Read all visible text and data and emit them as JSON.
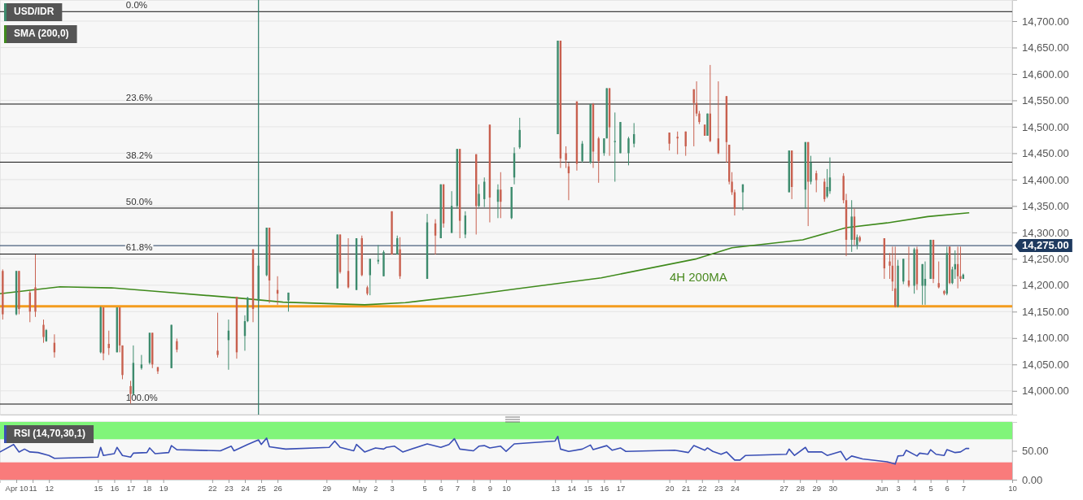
{
  "chart_data": [
    {
      "type": "candlestick",
      "xlim": [
        "--04-09T00:00",
        "--06-10T00:00"
      ],
      "ylim": [
        13955,
        14740
      ],
      "tick_labels": "y",
      "grid": "y",
      "legend": "top left",
      "yticks": [
        {
          "value": 14000,
          "label": "14,000.00"
        },
        {
          "value": 14050,
          "label": "14,050.00"
        },
        {
          "value": 14100,
          "label": "14,100.00"
        },
        {
          "value": 14150,
          "label": "14,150.00"
        },
        {
          "value": 14200,
          "label": "14,200.00"
        },
        {
          "value": 14250,
          "label": "14,250.00"
        },
        {
          "value": 14300,
          "label": "14,300.00"
        },
        {
          "value": 14350,
          "label": "14,350.00"
        },
        {
          "value": 14400,
          "label": "14,400.00"
        },
        {
          "value": 14450,
          "label": "14,450.00"
        },
        {
          "value": 14500,
          "label": "14,500.00"
        },
        {
          "value": 14550,
          "label": "14,550.00"
        },
        {
          "value": 14600,
          "label": "14,600.00"
        },
        {
          "value": 14650,
          "label": "14,650.00"
        },
        {
          "value": 14700,
          "label": "14,700.00"
        }
      ],
      "ref_lines": [
        {
          "axis": "y",
          "value": 14718
        },
        {
          "axis": "y",
          "value": 14543
        },
        {
          "axis": "y",
          "value": 14433
        },
        {
          "axis": "y",
          "value": 14346
        },
        {
          "axis": "y",
          "value": 14259
        },
        {
          "axis": "y",
          "value": 13975
        },
        {
          "axis": "y",
          "value": 14275,
          "label": "14,275.00",
          "color": "#1e3a5f"
        },
        {
          "axis": "y",
          "value": 14160,
          "color": "#f39c1e"
        },
        {
          "axis": "x",
          "value": "--04-24T20:00",
          "color": "#2e7d6a"
        }
      ],
      "annotations": [
        {
          "text": "0.0%",
          "x": "--04-16T16:00",
          "y": 14718
        },
        {
          "text": "23.6%",
          "x": "--04-16T16:00",
          "y": 14543
        },
        {
          "text": "38.2%",
          "x": "--04-16T16:00",
          "y": 14433
        },
        {
          "text": "50.0%",
          "x": "--04-16T16:00",
          "y": 14346
        },
        {
          "text": "61.8%",
          "x": "--04-16T16:00",
          "y": 14259
        },
        {
          "text": "100.0%",
          "x": "--04-16T16:00",
          "y": 13975
        },
        "4H 200MA"
      ],
      "series": [
        {
          "name": "SMA (200,0)",
          "type": "line",
          "color": "#3f8a1c",
          "x": [
            "--04-09T00:00",
            "--04-12T16:00",
            "--04-15T20:00",
            "--04-18T08:00",
            "--04-23T12:00",
            "--04-26T08:00",
            "--05-01T08:00",
            "--05-03T20:00",
            "--05-07T16:00",
            "--05-10T20:00",
            "--05-15T20:00",
            "--05-21T16:00",
            "--05-23T20:00",
            "--05-28T04:00",
            "--05-30T20:00",
            "--06-02T08:00",
            "--06-04T20:00",
            "--06-07T08:00"
          ],
          "values": [
            14184,
            14197,
            14195,
            14189,
            14176,
            14168,
            14163,
            14167,
            14181,
            14194,
            14214,
            14250,
            14271,
            14286,
            14309,
            14318,
            14330,
            14337
          ]
        },
        {
          "name": "USD/IDR",
          "color": "#3d8b6d",
          "x": [
            "--04-09T04:00",
            "--04-10T00:00",
            "--04-10T04:00",
            "--04-10T20:00",
            "--04-11T04:00",
            "--04-11T16:00",
            "--04-11T20:00",
            "--04-12T08:00",
            "--04-15T04:00",
            "--04-15T08:00",
            "--04-15T16:00",
            "--04-16T04:00",
            "--04-16T08:00",
            "--04-16T12:00",
            "--04-17T00:00",
            "--04-17T04:00",
            "--04-17T16:00",
            "--04-18T04:00",
            "--04-18T08:00",
            "--04-18T16:00",
            "--04-19T12:00",
            "--04-19T20:00",
            "--04-22T08:00",
            "--04-23T00:00",
            "--04-23T12:00",
            "--04-24T00:00",
            "--04-24T04:00",
            "--04-24T12:00",
            "--04-24T20:00",
            "--04-25T08:00",
            "--04-25T12:00",
            "--04-26T00:00",
            "--04-26T16:00",
            "--04-29T16:00",
            "--04-29T20:00",
            "--04-30T08:00",
            "--04-30T20:00",
            "--05-01T04:00",
            "--05-01T12:00",
            "--05-01T16:00",
            "--05-02T04:00",
            "--05-02T12:00",
            "--05-03T00:00",
            "--05-03T08:00",
            "--05-03T12:00",
            "--05-05T04:00",
            "--05-05T16:00",
            "--05-06T00:00",
            "--05-06T04:00",
            "--05-06T16:00",
            "--05-07T00:00",
            "--05-07T04:00",
            "--05-07T12:00",
            "--05-08T04:00",
            "--05-08T08:00",
            "--05-08T16:00",
            "--05-09T00:00",
            "--05-09T12:00",
            "--05-09T16:00",
            "--05-10T08:00",
            "--05-10T12:00",
            "--05-10T20:00",
            "--05-13T04:00",
            "--05-13T08:00",
            "--05-13T16:00",
            "--05-13T20:00",
            "--05-14T08:00",
            "--05-14T16:00",
            "--05-15T04:00",
            "--05-15T08:00",
            "--05-15T16:00",
            "--05-16T00:00",
            "--05-16T04:00",
            "--05-16T08:00",
            "--05-16T16:00",
            "--05-17T00:00",
            "--05-17T12:00",
            "--05-17T20:00",
            "--05-20T00:00",
            "--05-20T12:00",
            "--05-21T00:00",
            "--05-21T12:00",
            "--05-21T16:00",
            "--05-21T20:00",
            "--05-22T04:00",
            "--05-22T08:00",
            "--05-22T12:00",
            "--05-23T00:00",
            "--05-23T12:00",
            "--05-23T16:00",
            "--05-23T20:00",
            "--05-24T00:00",
            "--05-24T12:00",
            "--05-27T08:00",
            "--05-27T12:00",
            "--05-28T08:00",
            "--05-28T12:00",
            "--05-28T16:00",
            "--05-29T00:00",
            "--05-29T12:00",
            "--05-29T16:00",
            "--05-29T20:00",
            "--05-30T16:00",
            "--05-30T20:00",
            "--05-31T04:00",
            "--05-31T08:00",
            "--05-31T12:00",
            "--05-31T16:00",
            "--06-02T04:00",
            "--06-02T12:00",
            "--06-02T16:00",
            "--06-02T20:00",
            "--06-03T00:00",
            "--06-03T08:00",
            "--06-03T16:00",
            "--06-04T00:00",
            "--06-04T04:00",
            "--06-04T12:00",
            "--06-04T16:00",
            "--06-05T00:00",
            "--06-05T04:00",
            "--06-05T12:00",
            "--06-05T20:00",
            "--06-06T00:00",
            "--06-06T04:00",
            "--06-06T08:00",
            "--06-06T12:00",
            "--06-06T16:00",
            "--06-06T20:00",
            "--06-07T00:00"
          ],
          "ohlc": [
            [
              14227,
              14230,
              14135,
              14145
            ],
            [
              14145,
              14227,
              14143,
              14227
            ],
            [
              14227,
              14227,
              14145,
              14155
            ],
            [
              14186,
              14189,
              14130,
              14150
            ],
            [
              14196,
              14258,
              14140,
              14150
            ],
            [
              14125,
              14135,
              14091,
              14102
            ],
            [
              14094,
              14117,
              14093,
              14115
            ],
            [
              14091,
              14107,
              14063,
              14073
            ],
            [
              14073,
              14160,
              14071,
              14158
            ],
            [
              14158,
              14158,
              14058,
              14071
            ],
            [
              14089,
              14114,
              14068,
              14081
            ],
            [
              14073,
              14158,
              14073,
              14158
            ],
            [
              14158,
              14158,
              14073,
              14086
            ],
            [
              14086,
              14086,
              14022,
              14030
            ],
            [
              14009,
              14019,
              13976,
              13994
            ],
            [
              13994,
              14086,
              13991,
              14053
            ],
            [
              14043,
              14068,
              14040,
              14050
            ],
            [
              14053,
              14110,
              14050,
              14110
            ],
            [
              14110,
              14110,
              14043,
              14050
            ],
            [
              14045,
              14045,
              14032,
              14037
            ],
            [
              14043,
              14125,
              14043,
              14125
            ],
            [
              14094,
              14099,
              14073,
              14078
            ],
            [
              14076,
              14148,
              14063,
              14068
            ],
            [
              14096,
              14135,
              14040,
              14114
            ],
            [
              14178,
              14178,
              14061,
              14073
            ],
            [
              14104,
              14143,
              14076,
              14132
            ],
            [
              14132,
              14178,
              14130,
              14176
            ],
            [
              14268,
              14268,
              14130,
              14155
            ],
            [
              14171,
              14248,
              14168,
              14237
            ],
            [
              14219,
              14309,
              14217,
              14309
            ],
            [
              14309,
              14309,
              14166,
              14209
            ],
            [
              14191,
              14217,
              14163,
              14184
            ],
            [
              14171,
              14186,
              14150,
              14186
            ],
            [
              14194,
              14296,
              14194,
              14296
            ],
            [
              14296,
              14296,
              14222,
              14225
            ],
            [
              14227,
              14289,
              14194,
              14196
            ],
            [
              14191,
              14289,
              14191,
              14289
            ],
            [
              14289,
              14294,
              14217,
              14219
            ],
            [
              14196,
              14199,
              14181,
              14184
            ],
            [
              14219,
              14250,
              14181,
              14250
            ],
            [
              14245,
              14276,
              14240,
              14248
            ],
            [
              14217,
              14266,
              14217,
              14263
            ],
            [
              14340,
              14340,
              14258,
              14258
            ],
            [
              14258,
              14294,
              14258,
              14289
            ],
            [
              14268,
              14291,
              14212,
              14217
            ],
            [
              14212,
              14335,
              14212,
              14319
            ],
            [
              14317,
              14325,
              14258,
              14294
            ],
            [
              14289,
              14391,
              14289,
              14391
            ],
            [
              14391,
              14391,
              14309,
              14317
            ],
            [
              14299,
              14378,
              14299,
              14350
            ],
            [
              14350,
              14458,
              14345,
              14458
            ],
            [
              14458,
              14458,
              14289,
              14322
            ],
            [
              14296,
              14340,
              14289,
              14332
            ],
            [
              14448,
              14448,
              14296,
              14350
            ],
            [
              14350,
              14391,
              14348,
              14373
            ],
            [
              14363,
              14404,
              14348,
              14396
            ],
            [
              14504,
              14504,
              14319,
              14366
            ],
            [
              14358,
              14391,
              14327,
              14381
            ],
            [
              14381,
              14414,
              14327,
              14358
            ],
            [
              14327,
              14386,
              14325,
              14386
            ],
            [
              14404,
              14461,
              14391,
              14450
            ],
            [
              14461,
              14517,
              14458,
              14494
            ],
            [
              14486,
              14663,
              14486,
              14663
            ],
            [
              14663,
              14663,
              14422,
              14440
            ],
            [
              14450,
              14463,
              14422,
              14437
            ],
            [
              14425,
              14432,
              14361,
              14412
            ],
            [
              14548,
              14548,
              14417,
              14430
            ],
            [
              14435,
              14473,
              14432,
              14468
            ],
            [
              14432,
              14543,
              14430,
              14543
            ],
            [
              14543,
              14545,
              14422,
              14453
            ],
            [
              14478,
              14481,
              14394,
              14435
            ],
            [
              14450,
              14478,
              14445,
              14478
            ],
            [
              14478,
              14573,
              14478,
              14573
            ],
            [
              14573,
              14573,
              14445,
              14499
            ],
            [
              14471,
              14527,
              14396,
              14473
            ],
            [
              14450,
              14509,
              14450,
              14509
            ],
            [
              14450,
              14481,
              14427,
              14478
            ],
            [
              14468,
              14507,
              14461,
              14486
            ],
            [
              14489,
              14489,
              14455,
              14468
            ],
            [
              14481,
              14491,
              14448,
              14478
            ],
            [
              14491,
              14491,
              14445,
              14463
            ],
            [
              14571,
              14571,
              14463,
              14545
            ],
            [
              14545,
              14586,
              14520,
              14525
            ],
            [
              14525,
              14530,
              14505,
              14509
            ],
            [
              14504,
              14504,
              14483,
              14483
            ],
            [
              14483,
              14525,
              14483,
              14525
            ],
            [
              14525,
              14617,
              14471,
              14473
            ],
            [
              14478,
              14586,
              14448,
              14450
            ],
            [
              14558,
              14558,
              14432,
              14471
            ],
            [
              14466,
              14466,
              14391,
              14396
            ],
            [
              14396,
              14414,
              14371,
              14376
            ],
            [
              14376,
              14381,
              14332,
              14345
            ],
            [
              14376,
              14391,
              14342,
              14391
            ],
            [
              14376,
              14455,
              14376,
              14455
            ],
            [
              14455,
              14455,
              14363,
              14386
            ],
            [
              14381,
              14471,
              14345,
              14471
            ],
            [
              14471,
              14471,
              14312,
              14396
            ],
            [
              14396,
              14445,
              14391,
              14432
            ],
            [
              14412,
              14417,
              14376,
              14399
            ],
            [
              14396,
              14402,
              14358,
              14363
            ],
            [
              14368,
              14420,
              14365,
              14386
            ],
            [
              14378,
              14442,
              14373,
              14404
            ],
            [
              14407,
              14412,
              14355,
              14361
            ],
            [
              14361,
              14373,
              14255,
              14286
            ],
            [
              14286,
              14361,
              14263,
              14330
            ],
            [
              14330,
              14345,
              14276,
              14286
            ],
            [
              14276,
              14296,
              14268,
              14291
            ],
            [
              14291,
              14294,
              14281,
              14284
            ],
            [
              14289,
              14289,
              14212,
              14232
            ],
            [
              14245,
              14261,
              14212,
              14237
            ],
            [
              14237,
              14273,
              14189,
              14207
            ],
            [
              14194,
              14273,
              14158,
              14160
            ],
            [
              14160,
              14248,
              14158,
              14237
            ],
            [
              14207,
              14250,
              14202,
              14250
            ],
            [
              14209,
              14273,
              14196,
              14199
            ],
            [
              14199,
              14271,
              14184,
              14268
            ],
            [
              14268,
              14273,
              14191,
              14202
            ],
            [
              14199,
              14240,
              14163,
              14240
            ],
            [
              14199,
              14245,
              14163,
              14212
            ],
            [
              14212,
              14286,
              14212,
              14286
            ],
            [
              14286,
              14286,
              14204,
              14212
            ],
            [
              14204,
              14245,
              14194,
              14196
            ],
            [
              14189,
              14191,
              14181,
              14184
            ],
            [
              14184,
              14273,
              14181,
              14261
            ],
            [
              14273,
              14273,
              14202,
              14204
            ],
            [
              14204,
              14235,
              14202,
              14230
            ],
            [
              14230,
              14266,
              14212,
              14240
            ],
            [
              14240,
              14273,
              14194,
              14217
            ],
            [
              14217,
              14273,
              14207,
              14212
            ],
            [
              14212,
              14222,
              14212,
              14220
            ]
          ],
          "colors": [
            "#c8604f",
            "#3d8b6d",
            "#c8604f",
            "#c8604f",
            "#c8604f",
            "#c8604f",
            "#3d8b6d",
            "#c8604f",
            "#3d8b6d",
            "#c8604f",
            "#c8604f",
            "#3d8b6d",
            "#c8604f",
            "#c8604f",
            "#c8604f",
            "#3d8b6d",
            "#3d8b6d",
            "#3d8b6d",
            "#c8604f",
            "#c8604f",
            "#3d8b6d",
            "#c8604f",
            "#c8604f",
            "#3d8b6d",
            "#c8604f",
            "#3d8b6d",
            "#3d8b6d",
            "#c8604f",
            "#3d8b6d",
            "#3d8b6d",
            "#c8604f",
            "#c8604f",
            "#3d8b6d",
            "#3d8b6d",
            "#c8604f",
            "#c8604f",
            "#3d8b6d",
            "#c8604f",
            "#c8604f",
            "#3d8b6d",
            "#3d8b6d",
            "#3d8b6d",
            "#c8604f",
            "#3d8b6d",
            "#c8604f",
            "#3d8b6d",
            "#c8604f",
            "#3d8b6d",
            "#c8604f",
            "#3d8b6d",
            "#3d8b6d",
            "#c8604f",
            "#3d8b6d",
            "#c8604f",
            "#3d8b6d",
            "#3d8b6d",
            "#c8604f",
            "#3d8b6d",
            "#c8604f",
            "#3d8b6d",
            "#3d8b6d",
            "#3d8b6d",
            "#3d8b6d",
            "#c8604f",
            "#c8604f",
            "#c8604f",
            "#c8604f",
            "#3d8b6d",
            "#3d8b6d",
            "#c8604f",
            "#c8604f",
            "#3d8b6d",
            "#3d8b6d",
            "#c8604f",
            "#3d8b6d",
            "#3d8b6d",
            "#3d8b6d",
            "#3d8b6d",
            "#c8604f",
            "#c8604f",
            "#c8604f",
            "#c8604f",
            "#c8604f",
            "#c8604f",
            "#c8604f",
            "#3d8b6d",
            "#c8604f",
            "#c8604f",
            "#c8604f",
            "#c8604f",
            "#c8604f",
            "#c8604f",
            "#3d8b6d",
            "#3d8b6d",
            "#c8604f",
            "#3d8b6d",
            "#c8604f",
            "#3d8b6d",
            "#c8604f",
            "#c8604f",
            "#3d8b6d",
            "#3d8b6d",
            "#c8604f",
            "#c8604f",
            "#3d8b6d",
            "#c8604f",
            "#3d8b6d",
            "#c8604f",
            "#c8604f",
            "#c8604f",
            "#c8604f",
            "#c8604f",
            "#3d8b6d",
            "#3d8b6d",
            "#c8604f",
            "#3d8b6d",
            "#c8604f",
            "#3d8b6d",
            "#3d8b6d",
            "#3d8b6d",
            "#c8604f",
            "#c8604f",
            "#c8604f",
            "#3d8b6d",
            "#c8604f",
            "#3d8b6d",
            "#3d8b6d",
            "#c8604f",
            "#c8604f",
            "#3d8b6d"
          ]
        }
      ]
    },
    {
      "type": "line",
      "xlim": [
        "--04-09T00:00",
        "--06-10T00:00"
      ],
      "ylim": [
        0,
        100
      ],
      "legend": "top left",
      "xticks": [
        {
          "value": "--04-10",
          "label": "Apr 10"
        },
        {
          "value": "--04-11",
          "label": "11"
        },
        {
          "value": "--04-12",
          "label": "12"
        },
        {
          "value": "--04-15",
          "label": "15"
        },
        {
          "value": "--04-16",
          "label": "16"
        },
        {
          "value": "--04-17",
          "label": "17"
        },
        {
          "value": "--04-18",
          "label": "18"
        },
        {
          "value": "--04-19",
          "label": "19"
        },
        {
          "value": "--04-22",
          "label": "22"
        },
        {
          "value": "--04-23",
          "label": "23"
        },
        {
          "value": "--04-24",
          "label": "24"
        },
        {
          "value": "--04-25",
          "label": "25"
        },
        {
          "value": "--04-26",
          "label": "26"
        },
        {
          "value": "--04-29",
          "label": "29"
        },
        {
          "value": "--05-01",
          "label": "May"
        },
        {
          "value": "--05-02",
          "label": "2"
        },
        {
          "value": "--05-03",
          "label": "3"
        },
        {
          "value": "--05-05",
          "label": "5"
        },
        {
          "value": "--05-06",
          "label": "6"
        },
        {
          "value": "--05-07",
          "label": "7"
        },
        {
          "value": "--05-08",
          "label": "8"
        },
        {
          "value": "--05-09",
          "label": "9"
        },
        {
          "value": "--05-10",
          "label": "10"
        },
        {
          "value": "--05-13",
          "label": "13"
        },
        {
          "value": "--05-14",
          "label": "14"
        },
        {
          "value": "--05-15",
          "label": "15"
        },
        {
          "value": "--05-16",
          "label": "16"
        },
        {
          "value": "--05-17",
          "label": "17"
        },
        {
          "value": "--05-20",
          "label": "20"
        },
        {
          "value": "--05-21",
          "label": "21"
        },
        {
          "value": "--05-22",
          "label": "22"
        },
        {
          "value": "--05-23",
          "label": "23"
        },
        {
          "value": "--05-24",
          "label": "24"
        },
        {
          "value": "--05-27",
          "label": "27"
        },
        {
          "value": "--05-28",
          "label": "28"
        },
        {
          "value": "--05-29",
          "label": "29"
        },
        {
          "value": "--05-30",
          "label": "30"
        },
        {
          "value": "--06-02",
          "label": "Jun"
        },
        {
          "value": "--06-03",
          "label": "3"
        },
        {
          "value": "--06-04",
          "label": "4"
        },
        {
          "value": "--06-05",
          "label": "5"
        },
        {
          "value": "--06-06",
          "label": "6"
        },
        {
          "value": "--06-07",
          "label": "7"
        },
        {
          "value": "--06-10",
          "label": "10"
        }
      ],
      "yticks": [
        {
          "value": 0,
          "label": "0.00"
        },
        {
          "value": 50,
          "label": "50.00"
        }
      ],
      "bands": [
        {
          "axis": "y",
          "from": 70,
          "to": 100,
          "color": "#80f57a"
        },
        {
          "axis": "y",
          "from": 0,
          "to": 30,
          "color": "#f97b7b"
        }
      ],
      "series": [
        {
          "name": "RSI (14,70,30,1)",
          "color": "#3a4fb5",
          "x": [
            "--04-09T00:00",
            "--04-09T20:00",
            "--04-10T04:00",
            "--04-10T12:00",
            "--04-10T20:00",
            "--04-11T08:00",
            "--04-12T00:00",
            "--04-12T08:00",
            "--04-15T00:00",
            "--04-15T04:00",
            "--04-15T08:00",
            "--04-16T00:00",
            "--04-16T04:00",
            "--04-16T12:00",
            "--04-17T00:00",
            "--04-17T04:00",
            "--04-18T00:00",
            "--04-18T04:00",
            "--04-18T12:00",
            "--04-19T08:00",
            "--04-19T12:00",
            "--04-19T20:00",
            "--04-22T12:00",
            "--04-23T04:00",
            "--04-23T08:00",
            "--04-24T04:00",
            "--04-24T20:00",
            "--04-25T00:00",
            "--04-25T08:00",
            "--04-25T12:00",
            "--04-26T12:00",
            "--04-29T04:00",
            "--04-29T12:00",
            "--04-29T20:00",
            "--04-30T16:00",
            "--04-30T20:00",
            "--05-01T08:00",
            "--05-02T00:00",
            "--05-02T12:00",
            "--05-02T16:00",
            "--05-03T04:00",
            "--05-03T16:00",
            "--05-05T04:00",
            "--05-06T00:00",
            "--05-06T12:00",
            "--05-06T20:00",
            "--05-07T04:00",
            "--05-08T00:00",
            "--05-08T08:00",
            "--05-08T16:00",
            "--05-09T00:00",
            "--05-09T16:00",
            "--05-10T00:00",
            "--05-10T12:00",
            "--05-13T00:00",
            "--05-13T04:00",
            "--05-13T08:00",
            "--05-13T20:00",
            "--05-14T16:00",
            "--05-15T04:00",
            "--05-15T08:00",
            "--05-16T04:00",
            "--05-16T12:00",
            "--05-17T00:00",
            "--05-17T08:00",
            "--05-20T08:00",
            "--05-21T04:00",
            "--05-21T12:00",
            "--05-22T04:00",
            "--05-22T08:00",
            "--05-22T16:00",
            "--05-23T04:00",
            "--05-23T12:00",
            "--05-24T00:00",
            "--05-24T08:00",
            "--05-24T16:00",
            "--05-27T04:00",
            "--05-27T08:00",
            "--05-27T16:00",
            "--05-28T08:00",
            "--05-28T12:00",
            "--05-29T08:00",
            "--05-29T16:00",
            "--05-30T12:00",
            "--05-30T20:00",
            "--05-31T04:00",
            "--05-31T20:00",
            "--06-02T08:00",
            "--06-02T20:00",
            "--06-03T00:00",
            "--06-03T08:00",
            "--06-03T12:00",
            "--06-04T04:00",
            "--06-04T08:00",
            "--06-04T20:00",
            "--06-05T00:00",
            "--06-05T08:00",
            "--06-05T20:00",
            "--06-06T00:00",
            "--06-06T12:00",
            "--06-06T20:00",
            "--06-07T04:00",
            "--06-07T08:00"
          ],
          "values": [
            48,
            61,
            48,
            53,
            48,
            47,
            42,
            37,
            39,
            56,
            42,
            45,
            56,
            42,
            39,
            46,
            47,
            55,
            45,
            47,
            59,
            52,
            50,
            58,
            50,
            61,
            69,
            61,
            72,
            57,
            53,
            56,
            67,
            56,
            50,
            61,
            48,
            55,
            53,
            56,
            58,
            48,
            62,
            56,
            61,
            71,
            53,
            50,
            58,
            59,
            55,
            58,
            49,
            62,
            67,
            75,
            53,
            49,
            53,
            60,
            52,
            59,
            51,
            55,
            49,
            51,
            47,
            59,
            51,
            55,
            49,
            44,
            48,
            34,
            34,
            42,
            44,
            53,
            42,
            56,
            48,
            48,
            42,
            49,
            34,
            41,
            36,
            31,
            27,
            41,
            42,
            51,
            41,
            46,
            44,
            52,
            44,
            42,
            52,
            47,
            48,
            54,
            54
          ]
        }
      ]
    }
  ]
}
